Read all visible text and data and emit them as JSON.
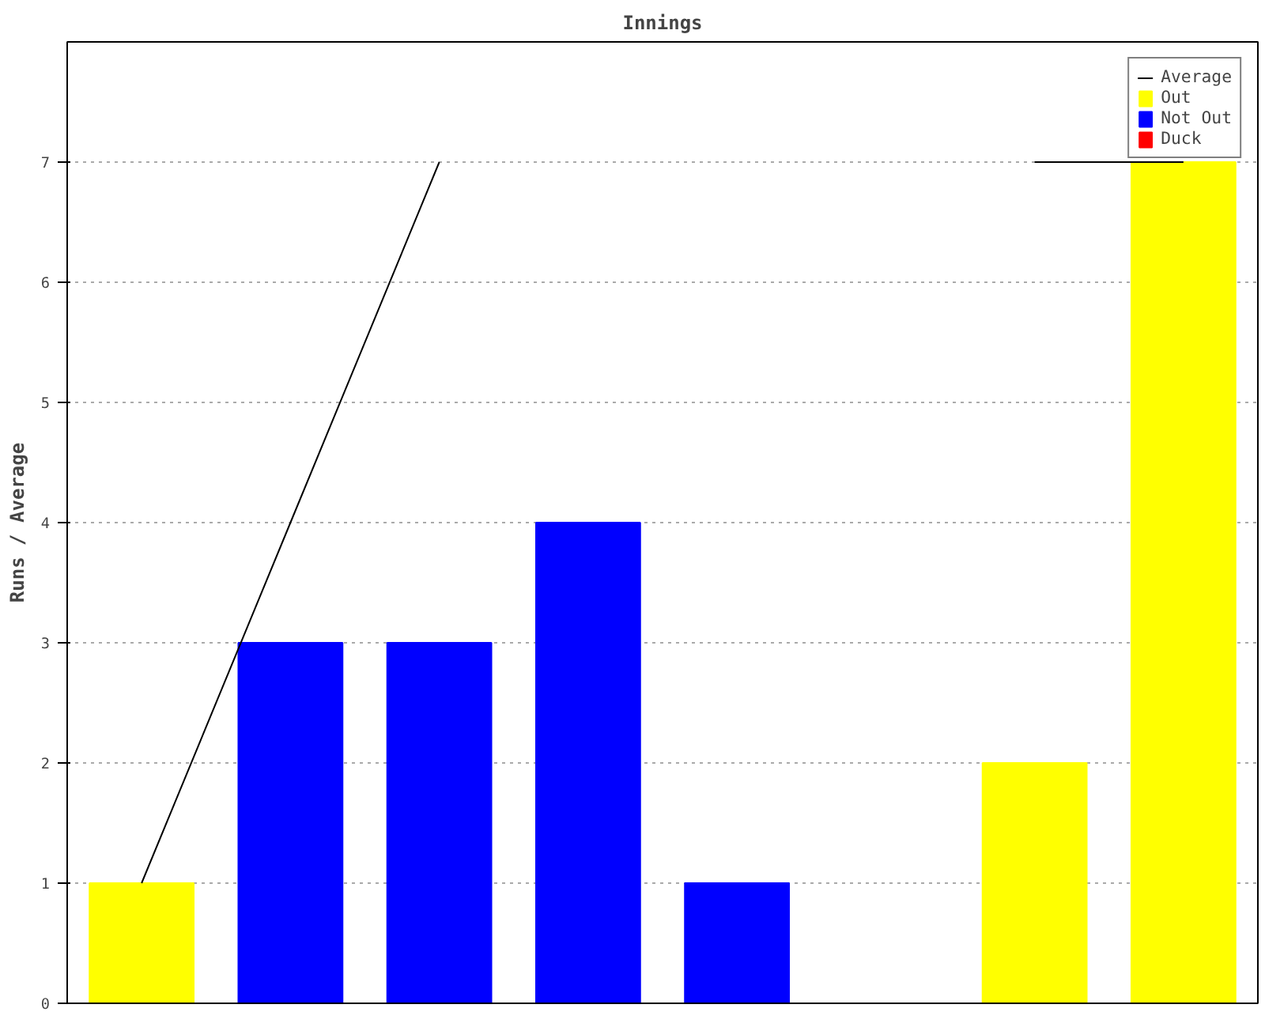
{
  "chart_data": {
    "type": "bar",
    "title": "Innings",
    "ylabel": "Runs / Average",
    "categories": [
      null,
      null,
      null,
      null,
      null,
      null,
      null,
      null
    ],
    "series": [
      {
        "name": "Average",
        "type": "line",
        "color": "#000000",
        "values": [
          1,
          4,
          7,
          null,
          null,
          null,
          7,
          7
        ]
      },
      {
        "name": "Out",
        "color": "#ffff00",
        "values": [
          1,
          null,
          null,
          null,
          null,
          null,
          2,
          7
        ]
      },
      {
        "name": "Not Out",
        "color": "#0000ff",
        "values": [
          null,
          3,
          3,
          4,
          1,
          0,
          null,
          null
        ]
      },
      {
        "name": "Duck",
        "color": "#ff0000",
        "values": [
          null,
          null,
          null,
          null,
          null,
          null,
          null,
          null
        ]
      }
    ],
    "ylim": [
      0,
      8
    ],
    "yticks": [
      0,
      1,
      2,
      3,
      4,
      5,
      6,
      7
    ],
    "grid": "y",
    "legend": "top right",
    "tick_labels": "y",
    "marker": "none"
  }
}
